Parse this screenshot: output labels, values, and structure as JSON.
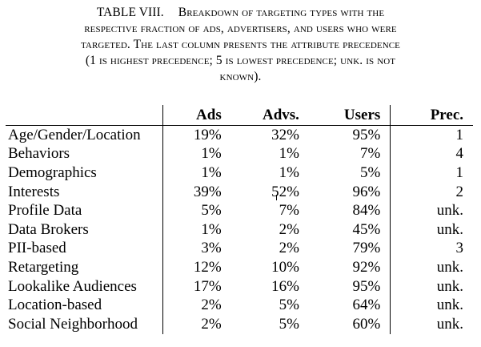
{
  "caption": {
    "number": "TABLE VIII.",
    "lines": [
      "Breakdown of targeting types with the",
      "respective fraction of ads, advertisers, and users who were",
      "targeted. The last column presents the attribute precedence",
      "(1 is highest precedence; 5 is lowest precedence; unk. is not",
      "known)."
    ]
  },
  "table": {
    "headers": [
      "",
      "Ads",
      "Advs.",
      "Users",
      "Prec."
    ],
    "rows": [
      {
        "type": "Age/Gender/Location",
        "ads": "19%",
        "advs": "32%",
        "users": "95%",
        "prec": "1"
      },
      {
        "type": "Behaviors",
        "ads": "1%",
        "advs": "1%",
        "users": "7%",
        "prec": "4"
      },
      {
        "type": "Demographics",
        "ads": "1%",
        "advs": "1%",
        "users": "5%",
        "prec": "1"
      },
      {
        "type": "Interests",
        "ads": "39%",
        "advs": "52%",
        "users": "96%",
        "prec": "2"
      },
      {
        "type": "Profile Data",
        "ads": "5%",
        "advs": "7%",
        "users": "84%",
        "prec": "unk."
      },
      {
        "type": "Data Brokers",
        "ads": "1%",
        "advs": "2%",
        "users": "45%",
        "prec": "unk."
      },
      {
        "type": "PII-based",
        "ads": "3%",
        "advs": "2%",
        "users": "79%",
        "prec": "3"
      },
      {
        "type": "Retargeting",
        "ads": "12%",
        "advs": "10%",
        "users": "92%",
        "prec": "unk."
      },
      {
        "type": "Lookalike Audiences",
        "ads": "17%",
        "advs": "16%",
        "users": "95%",
        "prec": "unk."
      },
      {
        "type": "Location-based",
        "ads": "2%",
        "advs": "5%",
        "users": "64%",
        "prec": "unk."
      },
      {
        "type": "Social Neighborhood",
        "ads": "2%",
        "advs": "5%",
        "users": "60%",
        "prec": "unk."
      }
    ]
  }
}
